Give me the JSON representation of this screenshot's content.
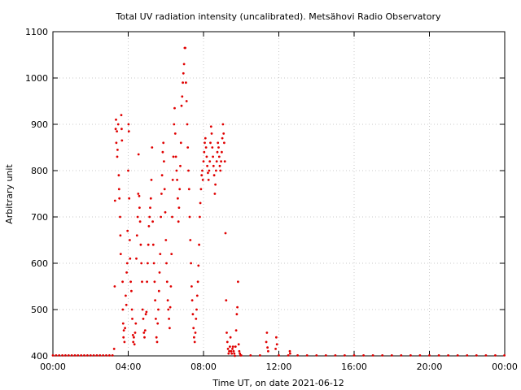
{
  "chart_data": {
    "type": "scatter",
    "title": "Total UV radiation intensity (uncalibrated). Metsähovi Radio Observatory",
    "xlabel": "Time UT, on date 2021-06-12",
    "ylabel": "Arbitrary unit",
    "xlim": [
      "00:00",
      "24:00"
    ],
    "ylim": [
      400,
      1100
    ],
    "x_ticks": [
      "00:00",
      "04:00",
      "08:00",
      "12:00",
      "16:00",
      "20:00",
      "00:00"
    ],
    "y_ticks": [
      400,
      500,
      600,
      700,
      800,
      900,
      1000,
      1100
    ],
    "grid": true,
    "point_color": "#e00000",
    "series": [
      {
        "points": [
          [
            "00:00",
            401
          ],
          [
            "00:10",
            401
          ],
          [
            "00:20",
            401
          ],
          [
            "00:30",
            401
          ],
          [
            "00:40",
            401
          ],
          [
            "00:50",
            401
          ],
          [
            "01:00",
            401
          ],
          [
            "01:10",
            401
          ],
          [
            "01:20",
            401
          ],
          [
            "01:30",
            401
          ],
          [
            "01:40",
            401
          ],
          [
            "01:50",
            401
          ],
          [
            "02:00",
            401
          ],
          [
            "02:10",
            401
          ],
          [
            "02:20",
            401
          ],
          [
            "02:30",
            401
          ],
          [
            "02:40",
            401
          ],
          [
            "02:50",
            401
          ],
          [
            "03:00",
            401
          ],
          [
            "03:10",
            401
          ],
          [
            "03:15",
            415
          ],
          [
            "03:17",
            550
          ],
          [
            "03:18",
            735
          ],
          [
            "03:20",
            890
          ],
          [
            "03:21",
            910
          ],
          [
            "03:22",
            860
          ],
          [
            "03:24",
            885
          ],
          [
            "03:25",
            830
          ],
          [
            "03:26",
            845
          ],
          [
            "03:28",
            900
          ],
          [
            "03:30",
            790
          ],
          [
            "03:31",
            760
          ],
          [
            "03:32",
            740
          ],
          [
            "03:34",
            700
          ],
          [
            "03:35",
            660
          ],
          [
            "03:36",
            620
          ],
          [
            "03:38",
            920
          ],
          [
            "03:39",
            890
          ],
          [
            "03:40",
            865
          ],
          [
            "03:42",
            560
          ],
          [
            "03:43",
            500
          ],
          [
            "03:44",
            470
          ],
          [
            "03:45",
            440
          ],
          [
            "03:46",
            455
          ],
          [
            "03:48",
            430
          ],
          [
            "03:50",
            460
          ],
          [
            "03:52",
            530
          ],
          [
            "03:54",
            510
          ],
          [
            "03:55",
            580
          ],
          [
            "03:57",
            600
          ],
          [
            "03:58",
            670
          ],
          [
            "04:00",
            800
          ],
          [
            "04:01",
            900
          ],
          [
            "04:02",
            885
          ],
          [
            "04:03",
            740
          ],
          [
            "04:05",
            650
          ],
          [
            "04:06",
            610
          ],
          [
            "04:08",
            560
          ],
          [
            "04:10",
            540
          ],
          [
            "04:12",
            500
          ],
          [
            "04:13",
            480
          ],
          [
            "04:15",
            445
          ],
          [
            "04:16",
            430
          ],
          [
            "04:18",
            440
          ],
          [
            "04:20",
            425
          ],
          [
            "04:22",
            450
          ],
          [
            "04:24",
            470
          ],
          [
            "04:26",
            610
          ],
          [
            "04:28",
            660
          ],
          [
            "04:30",
            700
          ],
          [
            "04:32",
            750
          ],
          [
            "04:33",
            835
          ],
          [
            "04:35",
            745
          ],
          [
            "04:36",
            720
          ],
          [
            "04:38",
            690
          ],
          [
            "04:40",
            640
          ],
          [
            "04:42",
            600
          ],
          [
            "04:44",
            560
          ],
          [
            "04:46",
            500
          ],
          [
            "04:48",
            480
          ],
          [
            "04:50",
            450
          ],
          [
            "04:52",
            440
          ],
          [
            "04:54",
            455
          ],
          [
            "04:56",
            490
          ],
          [
            "04:58",
            495
          ],
          [
            "05:00",
            560
          ],
          [
            "05:02",
            600
          ],
          [
            "05:04",
            640
          ],
          [
            "05:06",
            680
          ],
          [
            "05:08",
            700
          ],
          [
            "05:10",
            720
          ],
          [
            "05:12",
            740
          ],
          [
            "05:14",
            780
          ],
          [
            "05:16",
            850
          ],
          [
            "05:18",
            690
          ],
          [
            "05:20",
            640
          ],
          [
            "05:22",
            600
          ],
          [
            "05:24",
            560
          ],
          [
            "05:26",
            520
          ],
          [
            "05:28",
            480
          ],
          [
            "05:30",
            440
          ],
          [
            "05:32",
            430
          ],
          [
            "05:34",
            470
          ],
          [
            "05:36",
            500
          ],
          [
            "05:38",
            540
          ],
          [
            "05:40",
            580
          ],
          [
            "05:42",
            620
          ],
          [
            "05:44",
            700
          ],
          [
            "05:46",
            750
          ],
          [
            "05:48",
            790
          ],
          [
            "05:50",
            840
          ],
          [
            "05:52",
            860
          ],
          [
            "05:54",
            820
          ],
          [
            "05:56",
            760
          ],
          [
            "05:58",
            710
          ],
          [
            "06:00",
            650
          ],
          [
            "06:02",
            600
          ],
          [
            "06:04",
            560
          ],
          [
            "06:06",
            520
          ],
          [
            "06:08",
            500
          ],
          [
            "06:10",
            480
          ],
          [
            "06:12",
            460
          ],
          [
            "06:14",
            505
          ],
          [
            "06:16",
            550
          ],
          [
            "06:18",
            620
          ],
          [
            "06:20",
            700
          ],
          [
            "06:22",
            780
          ],
          [
            "06:24",
            830
          ],
          [
            "06:26",
            900
          ],
          [
            "06:28",
            935
          ],
          [
            "06:30",
            880
          ],
          [
            "06:32",
            830
          ],
          [
            "06:34",
            800
          ],
          [
            "06:36",
            780
          ],
          [
            "06:38",
            740
          ],
          [
            "06:40",
            690
          ],
          [
            "06:42",
            720
          ],
          [
            "06:44",
            760
          ],
          [
            "06:46",
            810
          ],
          [
            "06:48",
            860
          ],
          [
            "06:50",
            940
          ],
          [
            "06:52",
            960
          ],
          [
            "06:54",
            990
          ],
          [
            "06:56",
            1010
          ],
          [
            "06:58",
            1030
          ],
          [
            "07:00",
            1065
          ],
          [
            "07:02",
            1065
          ],
          [
            "07:04",
            990
          ],
          [
            "07:06",
            950
          ],
          [
            "07:08",
            900
          ],
          [
            "07:10",
            850
          ],
          [
            "07:12",
            800
          ],
          [
            "07:14",
            760
          ],
          [
            "07:16",
            700
          ],
          [
            "07:18",
            650
          ],
          [
            "07:20",
            600
          ],
          [
            "07:22",
            550
          ],
          [
            "07:24",
            520
          ],
          [
            "07:26",
            490
          ],
          [
            "07:28",
            460
          ],
          [
            "07:30",
            440
          ],
          [
            "07:32",
            430
          ],
          [
            "07:34",
            450
          ],
          [
            "07:36",
            480
          ],
          [
            "07:38",
            500
          ],
          [
            "07:40",
            530
          ],
          [
            "07:42",
            560
          ],
          [
            "07:44",
            595
          ],
          [
            "07:46",
            640
          ],
          [
            "07:48",
            700
          ],
          [
            "07:50",
            730
          ],
          [
            "07:52",
            760
          ],
          [
            "07:54",
            790
          ],
          [
            "07:56",
            800
          ],
          [
            "07:58",
            780
          ],
          [
            "08:00",
            820
          ],
          [
            "08:02",
            840
          ],
          [
            "08:04",
            860
          ],
          [
            "08:06",
            870
          ],
          [
            "08:08",
            850
          ],
          [
            "08:10",
            830
          ],
          [
            "08:12",
            810
          ],
          [
            "08:14",
            795
          ],
          [
            "08:16",
            780
          ],
          [
            "08:18",
            800
          ],
          [
            "08:20",
            820
          ],
          [
            "08:22",
            860
          ],
          [
            "08:24",
            895
          ],
          [
            "08:26",
            880
          ],
          [
            "08:28",
            850
          ],
          [
            "08:30",
            830
          ],
          [
            "08:32",
            810
          ],
          [
            "08:34",
            790
          ],
          [
            "08:36",
            750
          ],
          [
            "08:38",
            770
          ],
          [
            "08:40",
            800
          ],
          [
            "08:42",
            820
          ],
          [
            "08:44",
            840
          ],
          [
            "08:46",
            860
          ],
          [
            "08:48",
            850
          ],
          [
            "08:50",
            830
          ],
          [
            "08:52",
            810
          ],
          [
            "08:54",
            800
          ],
          [
            "08:56",
            820
          ],
          [
            "08:58",
            840
          ],
          [
            "09:00",
            870
          ],
          [
            "09:02",
            900
          ],
          [
            "09:04",
            880
          ],
          [
            "09:06",
            860
          ],
          [
            "09:08",
            820
          ],
          [
            "09:10",
            665
          ],
          [
            "09:12",
            520
          ],
          [
            "09:14",
            450
          ],
          [
            "09:16",
            430
          ],
          [
            "09:18",
            415
          ],
          [
            "09:20",
            405
          ],
          [
            "09:22",
            410
          ],
          [
            "09:24",
            420
          ],
          [
            "09:26",
            440
          ],
          [
            "09:28",
            410
          ],
          [
            "09:30",
            405
          ],
          [
            "09:32",
            415
          ],
          [
            "09:34",
            420
          ],
          [
            "09:36",
            410
          ],
          [
            "09:38",
            405
          ],
          [
            "09:40",
            400
          ],
          [
            "09:42",
            420
          ],
          [
            "09:44",
            455
          ],
          [
            "09:46",
            490
          ],
          [
            "09:48",
            505
          ],
          [
            "09:50",
            560
          ],
          [
            "09:52",
            425
          ],
          [
            "09:54",
            410
          ],
          [
            "09:56",
            405
          ],
          [
            "09:58",
            401
          ],
          [
            "10:00",
            401
          ],
          [
            "10:30",
            401
          ],
          [
            "11:00",
            401
          ],
          [
            "11:20",
            430
          ],
          [
            "11:22",
            450
          ],
          [
            "11:24",
            418
          ],
          [
            "11:26",
            410
          ],
          [
            "11:50",
            415
          ],
          [
            "11:52",
            440
          ],
          [
            "11:54",
            425
          ],
          [
            "12:00",
            401
          ],
          [
            "12:30",
            401
          ],
          [
            "12:35",
            410
          ],
          [
            "12:36",
            405
          ],
          [
            "13:00",
            401
          ],
          [
            "13:30",
            401
          ],
          [
            "14:00",
            401
          ],
          [
            "14:30",
            401
          ],
          [
            "15:00",
            401
          ],
          [
            "15:30",
            401
          ],
          [
            "16:00",
            401
          ],
          [
            "16:30",
            401
          ],
          [
            "17:00",
            401
          ],
          [
            "17:30",
            401
          ],
          [
            "18:00",
            401
          ],
          [
            "18:30",
            401
          ],
          [
            "19:00",
            401
          ],
          [
            "19:30",
            401
          ],
          [
            "20:00",
            401
          ],
          [
            "20:30",
            401
          ],
          [
            "21:00",
            401
          ],
          [
            "21:30",
            401
          ],
          [
            "22:00",
            401
          ],
          [
            "22:30",
            401
          ],
          [
            "23:00",
            401
          ],
          [
            "23:30",
            401
          ],
          [
            "23:59",
            401
          ]
        ]
      }
    ]
  }
}
